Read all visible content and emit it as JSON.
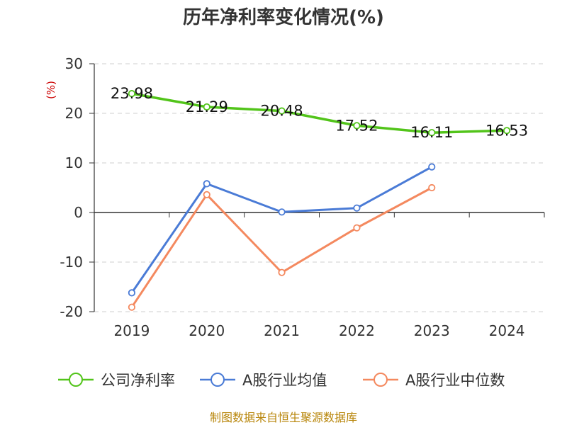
{
  "chart_data": {
    "type": "line",
    "title": "历年净利率变化情况(%)",
    "xlabel": "",
    "ylabel": "(%)",
    "categories": [
      "2019",
      "2020",
      "2021",
      "2022",
      "2023",
      "2024"
    ],
    "ylim": [
      -20,
      30
    ],
    "yticks": [
      30,
      20,
      10,
      0,
      -10,
      -20
    ],
    "grid": true,
    "legend_position": "bottom",
    "series": [
      {
        "name": "公司净利率",
        "color": "#52c41a",
        "values": [
          23.98,
          21.29,
          20.48,
          17.52,
          16.11,
          16.53
        ],
        "labels": [
          "23.98",
          "21.29",
          "20.48",
          "17.52",
          "16.11",
          "16.53"
        ],
        "show_labels": true
      },
      {
        "name": "A股行业均值",
        "color": "#4a7bd6",
        "values": [
          -16.2,
          5.8,
          0.1,
          0.9,
          9.2,
          null
        ],
        "show_labels": false
      },
      {
        "name": "A股行业中位数",
        "color": "#f4895f",
        "values": [
          -19.1,
          3.6,
          -12.1,
          -3.1,
          5.0,
          null
        ],
        "show_labels": false
      }
    ]
  },
  "footer": {
    "source": "制图数据来自恒生聚源数据库"
  }
}
